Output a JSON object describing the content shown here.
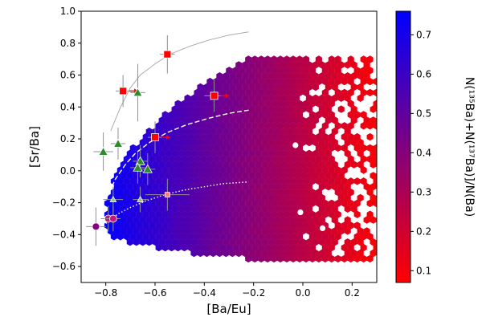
{
  "chart_data": {
    "type": "scatter",
    "title": "",
    "xlabel": "[Ba/Eu]",
    "ylabel": "[Sr/Ba]",
    "xlim": [
      -0.9,
      0.3
    ],
    "ylim": [
      -0.7,
      1.0
    ],
    "xticks": [
      -0.8,
      -0.6,
      -0.4,
      -0.2,
      0.0,
      0.2
    ],
    "xtick_labels": [
      "−0.8",
      "−0.6",
      "−0.4",
      "−0.2",
      "0.0",
      "0.2"
    ],
    "yticks": [
      -0.6,
      -0.4,
      -0.2,
      0.0,
      0.2,
      0.4,
      0.6,
      0.8,
      1.0
    ],
    "ytick_labels": [
      "−0.6",
      "−0.4",
      "−0.2",
      "0.0",
      "0.2",
      "0.4",
      "0.6",
      "0.8",
      "1.0"
    ],
    "grid": false,
    "colorbar": {
      "label": "N(¹³⁵Ba)+N(¹³⁷Ba)]/N(Ba)",
      "range": [
        0.07,
        0.76
      ],
      "ticks": [
        0.1,
        0.2,
        0.3,
        0.4,
        0.5,
        0.6,
        0.7
      ],
      "tick_labels": [
        "0.1",
        "0.2",
        "0.3",
        "0.4",
        "0.5",
        "0.6",
        "0.7"
      ],
      "color_low": "#ff0000",
      "color_high": "#0000ff"
    },
    "model_curves": [
      {
        "style": "solid",
        "color": "#aaaaaa",
        "x": [
          -0.78,
          -0.74,
          -0.7,
          -0.66,
          -0.6,
          -0.54,
          -0.46,
          -0.38,
          -0.3,
          -0.22
        ],
        "y": [
          0.25,
          0.4,
          0.52,
          0.6,
          0.67,
          0.73,
          0.78,
          0.82,
          0.85,
          0.87
        ]
      },
      {
        "style": "dashed",
        "color": "#ffffff",
        "x": [
          -0.8,
          -0.76,
          -0.72,
          -0.68,
          -0.62,
          -0.55,
          -0.47,
          -0.38,
          -0.3,
          -0.22
        ],
        "y": [
          -0.18,
          -0.05,
          0.04,
          0.11,
          0.18,
          0.24,
          0.29,
          0.33,
          0.36,
          0.38
        ]
      },
      {
        "style": "dotted",
        "color": "#ffffff",
        "x": [
          -0.8,
          -0.75,
          -0.7,
          -0.64,
          -0.56,
          -0.48,
          -0.4,
          -0.32,
          -0.22
        ],
        "y": [
          -0.33,
          -0.27,
          -0.23,
          -0.19,
          -0.15,
          -0.12,
          -0.1,
          -0.08,
          -0.07
        ]
      }
    ],
    "observations": [
      {
        "marker": "square",
        "color": "#ff0000",
        "x": -0.55,
        "y": 0.73,
        "xerr": 0.03,
        "yerr": 0.12,
        "arrow": false
      },
      {
        "marker": "square",
        "color": "#ff0000",
        "x": -0.73,
        "y": 0.5,
        "xerr": 0.03,
        "yerr": 0.1,
        "arrow": true
      },
      {
        "marker": "square",
        "color": "#ff0000",
        "x": -0.36,
        "y": 0.47,
        "xerr": 0.04,
        "yerr": 0.1,
        "arrow": true
      },
      {
        "marker": "square",
        "color": "#ff0000",
        "x": -0.6,
        "y": 0.21,
        "xerr": 0.03,
        "yerr": 0.1,
        "arrow": true
      },
      {
        "marker": "square-small",
        "color": "#f08080",
        "x": -0.55,
        "y": -0.15,
        "xerr": 0.09,
        "yerr": 0.1,
        "arrow": false
      },
      {
        "marker": "triangle",
        "color": "#2e8b2e",
        "x": -0.67,
        "y": 0.49,
        "xerr": 0.03,
        "yerr": 0.18,
        "arrow": false
      },
      {
        "marker": "triangle",
        "color": "#2e8b2e",
        "x": -0.81,
        "y": 0.12,
        "xerr": 0.04,
        "yerr": 0.12,
        "arrow": false
      },
      {
        "marker": "triangle",
        "color": "#2e8b2e",
        "x": -0.75,
        "y": 0.17,
        "xerr": 0.03,
        "yerr": 0.1,
        "arrow": false
      },
      {
        "marker": "triangle",
        "color": "#2e8b2e",
        "x": -0.66,
        "y": 0.06,
        "xerr": 0.03,
        "yerr": 0.1,
        "arrow": false
      },
      {
        "marker": "triangle",
        "color": "#2e8b2e",
        "x": -0.67,
        "y": 0.02,
        "xerr": 0.03,
        "yerr": 0.1,
        "arrow": false
      },
      {
        "marker": "triangle",
        "color": "#2e8b2e",
        "x": -0.63,
        "y": 0.01,
        "xerr": 0.03,
        "yerr": 0.1,
        "arrow": false
      },
      {
        "marker": "triangle-small",
        "color": "#90c090",
        "x": -0.77,
        "y": -0.18,
        "xerr": 0.04,
        "yerr": 0.08,
        "arrow": false
      },
      {
        "marker": "triangle-small",
        "color": "#90c090",
        "x": -0.66,
        "y": -0.18,
        "xerr": 0.03,
        "yerr": 0.08,
        "arrow": false
      },
      {
        "marker": "circle",
        "color": "#800080",
        "x": -0.84,
        "y": -0.35,
        "xerr": 0.04,
        "yerr": 0.12,
        "arrow": false
      },
      {
        "marker": "circle",
        "color": "#c71585",
        "x": -0.79,
        "y": -0.3,
        "xerr": 0.03,
        "yerr": 0.08,
        "arrow": false
      },
      {
        "marker": "circle",
        "color": "#c71585",
        "x": -0.77,
        "y": -0.3,
        "xerr": 0.03,
        "yerr": 0.08,
        "arrow": false
      }
    ]
  }
}
